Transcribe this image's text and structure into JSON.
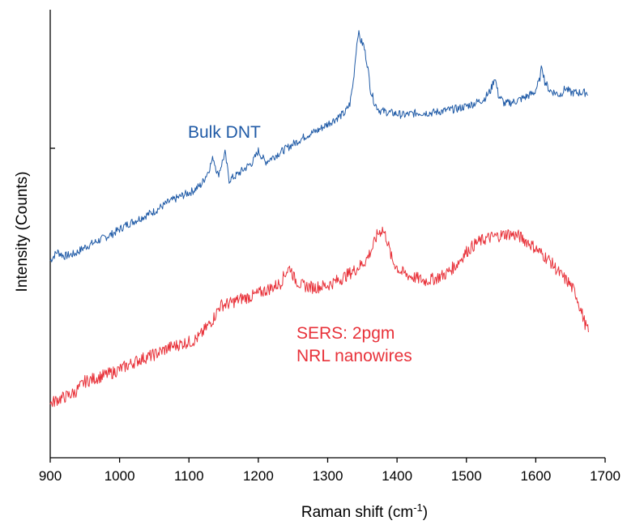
{
  "chart_data": {
    "type": "line",
    "xlabel": "Raman shift (cm",
    "xlabel_sup": "-1",
    "xlabel_tail": ")",
    "ylabel": "Intensity (Counts)",
    "xlim": [
      900,
      1700
    ],
    "ylim": [
      0,
      100
    ],
    "x_ticks": [
      900,
      1000,
      1100,
      1200,
      1300,
      1400,
      1500,
      1600,
      1700
    ],
    "y_ticks": [],
    "grid": false,
    "legend": "none",
    "series": [
      {
        "color": "#1f5aa6",
        "annotation": [
          "Bulk DNT"
        ],
        "points": [
          [
            900,
            44
          ],
          [
            910,
            46
          ],
          [
            920,
            45
          ],
          [
            935,
            45.5
          ],
          [
            950,
            47
          ],
          [
            970,
            48.5
          ],
          [
            990,
            50
          ],
          [
            1010,
            52
          ],
          [
            1030,
            53.5
          ],
          [
            1050,
            55
          ],
          [
            1070,
            57
          ],
          [
            1090,
            58.5
          ],
          [
            1105,
            59.5
          ],
          [
            1118,
            61
          ],
          [
            1128,
            64
          ],
          [
            1135,
            67
          ],
          [
            1142,
            63
          ],
          [
            1152,
            68
          ],
          [
            1158,
            62
          ],
          [
            1168,
            63
          ],
          [
            1180,
            64.5
          ],
          [
            1192,
            66
          ],
          [
            1200,
            68.5
          ],
          [
            1210,
            66
          ],
          [
            1225,
            67.5
          ],
          [
            1240,
            69
          ],
          [
            1255,
            70.5
          ],
          [
            1270,
            72
          ],
          [
            1285,
            73
          ],
          [
            1300,
            74.5
          ],
          [
            1315,
            76
          ],
          [
            1325,
            77
          ],
          [
            1332,
            79
          ],
          [
            1337,
            84
          ],
          [
            1341,
            91
          ],
          [
            1344,
            95
          ],
          [
            1348,
            93
          ],
          [
            1352,
            92
          ],
          [
            1357,
            88
          ],
          [
            1362,
            82
          ],
          [
            1368,
            79
          ],
          [
            1375,
            77.5
          ],
          [
            1390,
            77
          ],
          [
            1410,
            76.5
          ],
          [
            1430,
            77
          ],
          [
            1450,
            77
          ],
          [
            1470,
            77.5
          ],
          [
            1490,
            78
          ],
          [
            1510,
            79
          ],
          [
            1525,
            80
          ],
          [
            1535,
            82
          ],
          [
            1541,
            85
          ],
          [
            1546,
            81
          ],
          [
            1555,
            79
          ],
          [
            1570,
            79.5
          ],
          [
            1585,
            80.5
          ],
          [
            1598,
            81.5
          ],
          [
            1605,
            84
          ],
          [
            1609,
            87.5
          ],
          [
            1613,
            84
          ],
          [
            1620,
            82
          ],
          [
            1635,
            81
          ],
          [
            1643,
            82.5
          ],
          [
            1650,
            81.5
          ],
          [
            1665,
            81.5
          ],
          [
            1675,
            81.5
          ]
        ]
      },
      {
        "color": "#e8323a",
        "annotation": [
          "SERS: 2pgm",
          "NRL nanowires"
        ],
        "points": [
          [
            900,
            12
          ],
          [
            910,
            13
          ],
          [
            920,
            13.5
          ],
          [
            935,
            14.5
          ],
          [
            950,
            17
          ],
          [
            970,
            18
          ],
          [
            990,
            19
          ],
          [
            1010,
            20.5
          ],
          [
            1030,
            22
          ],
          [
            1050,
            23
          ],
          [
            1070,
            24.5
          ],
          [
            1090,
            25.5
          ],
          [
            1105,
            26
          ],
          [
            1115,
            27
          ],
          [
            1125,
            29
          ],
          [
            1135,
            31
          ],
          [
            1145,
            34
          ],
          [
            1160,
            34.5
          ],
          [
            1175,
            35.5
          ],
          [
            1190,
            36
          ],
          [
            1205,
            37
          ],
          [
            1220,
            38
          ],
          [
            1232,
            39
          ],
          [
            1240,
            41.5
          ],
          [
            1246,
            42.5
          ],
          [
            1252,
            40
          ],
          [
            1262,
            38.5
          ],
          [
            1280,
            38
          ],
          [
            1300,
            38.5
          ],
          [
            1320,
            40
          ],
          [
            1340,
            42
          ],
          [
            1355,
            44
          ],
          [
            1365,
            47
          ],
          [
            1372,
            50
          ],
          [
            1379,
            51
          ],
          [
            1385,
            49
          ],
          [
            1393,
            44
          ],
          [
            1405,
            41.5
          ],
          [
            1420,
            40.5
          ],
          [
            1440,
            39.5
          ],
          [
            1455,
            40
          ],
          [
            1470,
            41
          ],
          [
            1485,
            43
          ],
          [
            1500,
            46
          ],
          [
            1515,
            48
          ],
          [
            1530,
            49
          ],
          [
            1545,
            49.5
          ],
          [
            1560,
            50
          ],
          [
            1575,
            49.5
          ],
          [
            1590,
            48
          ],
          [
            1605,
            46
          ],
          [
            1620,
            44
          ],
          [
            1635,
            41
          ],
          [
            1648,
            39
          ],
          [
            1658,
            36.5
          ],
          [
            1665,
            33
          ],
          [
            1672,
            29.5
          ],
          [
            1676,
            28
          ]
        ]
      }
    ]
  }
}
